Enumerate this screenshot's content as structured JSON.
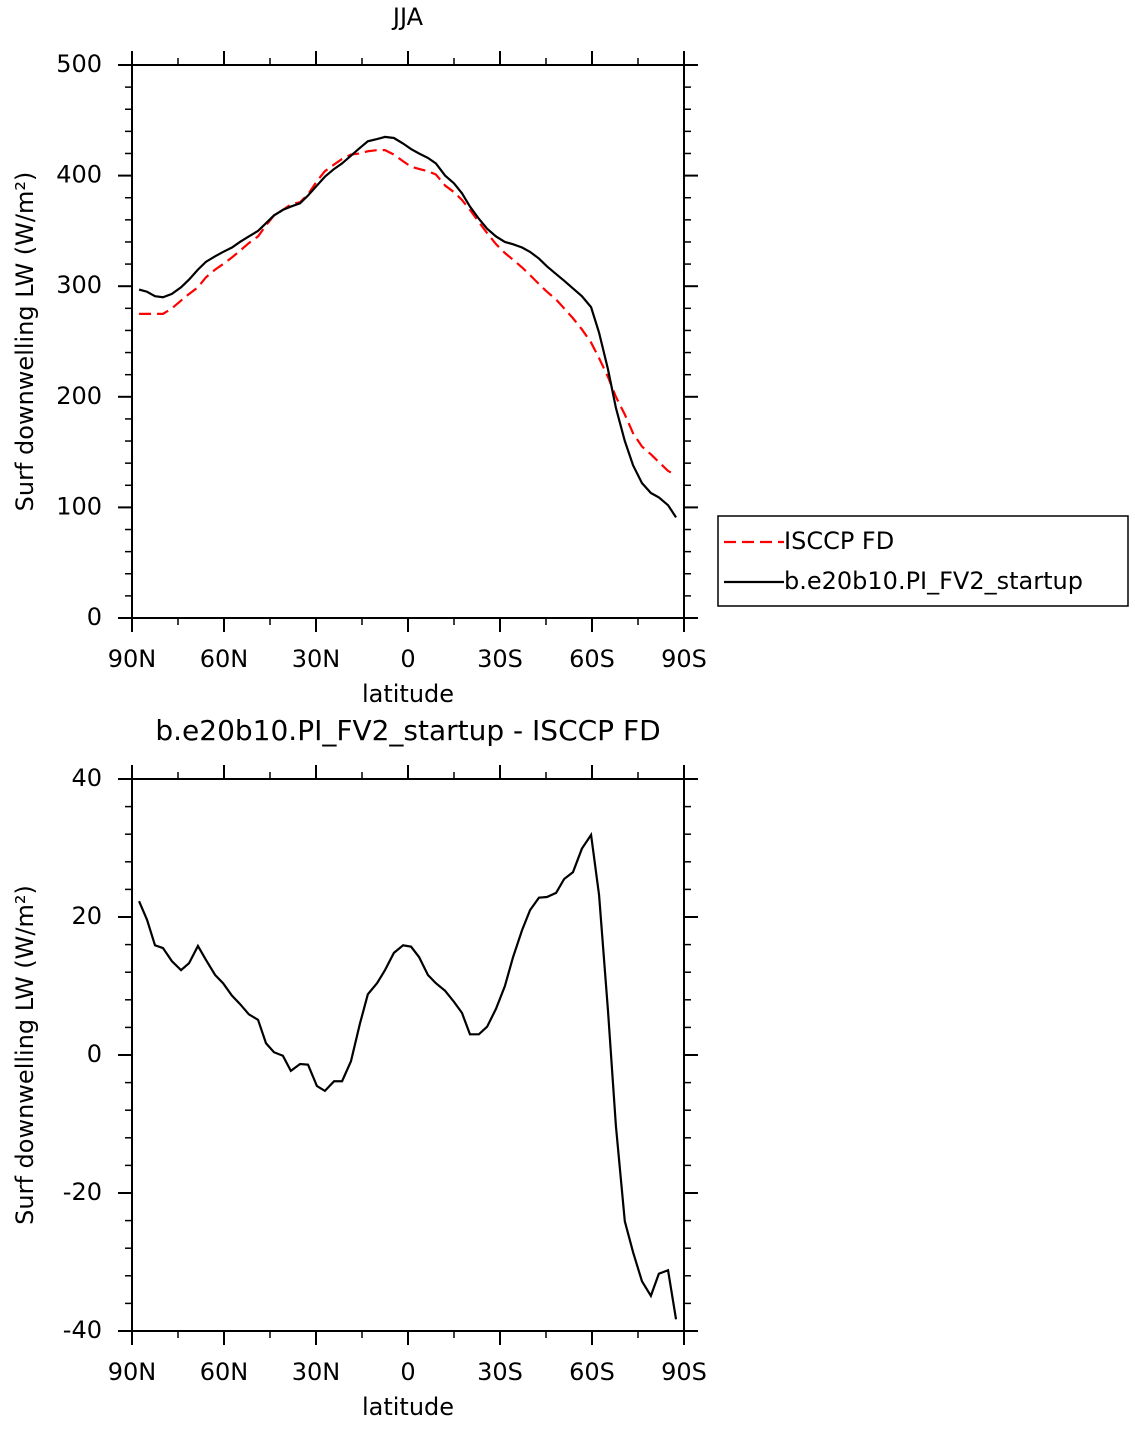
{
  "chart_data": [
    {
      "type": "line",
      "title": "JJA",
      "xlabel": "latitude",
      "ylabel": "Surf downwelling LW (W/m²)",
      "x": [
        87.7,
        85.1,
        82.5,
        79.9,
        77,
        74,
        71.4,
        68.5,
        65.9,
        62.9,
        60.3,
        57.4,
        54.8,
        51.9,
        48.9,
        46.3,
        43.7,
        40.8,
        38.2,
        35.2,
        32.6,
        29.7,
        27.1,
        24.1,
        21.5,
        18.6,
        15.7,
        13.1,
        10.1,
        7.5,
        4.6,
        1.6,
        -1,
        -3.6,
        -6.5,
        -9.1,
        -12.1,
        -15,
        -17.6,
        -20.2,
        -23.1,
        -25.8,
        -28.7,
        -31.6,
        -34.2,
        -37.2,
        -39.8,
        -42.7,
        -45.3,
        -48.3,
        -50.9,
        -53.8,
        -56.7,
        -59.7,
        -62.3,
        -65.2,
        -67.8,
        -70.7,
        -73.4,
        -76.3,
        -79.2,
        -81.8,
        -84.8,
        -87.4
      ],
      "series": [
        {
          "name": "ISCCP FD",
          "color": "#ff0000",
          "dash": true,
          "values": [
            275,
            275,
            275,
            275,
            280,
            287,
            293,
            299,
            308,
            315,
            320,
            326,
            332,
            339,
            345,
            355,
            364,
            369,
            374,
            376,
            383,
            395,
            404,
            410,
            415,
            419,
            420,
            422,
            423,
            423,
            419,
            413,
            408,
            406,
            404,
            401,
            391,
            385,
            378,
            369,
            358,
            348,
            338,
            330,
            324,
            317,
            310,
            302,
            295,
            288,
            280,
            271,
            261,
            249,
            235,
            218,
            200,
            184,
            167,
            155,
            148,
            141,
            133,
            129
          ]
        },
        {
          "name": "b.e20b10.PI_FV2_startup",
          "color": "#000000",
          "dash": false,
          "values": [
            297,
            295,
            291,
            290,
            293,
            299,
            306,
            315,
            322,
            327,
            331,
            335,
            340,
            345,
            350,
            357,
            364,
            369,
            372,
            375,
            382,
            391,
            399,
            406,
            411,
            418,
            425,
            431,
            433,
            435,
            434,
            429,
            424,
            420,
            416,
            411,
            400,
            393,
            384,
            372,
            361,
            352,
            345,
            340,
            338,
            335,
            331,
            325,
            318,
            311,
            305,
            298,
            291,
            281,
            258,
            225,
            190,
            160,
            138,
            122,
            113,
            109,
            102,
            91
          ]
        }
      ],
      "xlim": [
        90,
        -90
      ],
      "xticks": [
        {
          "value": 90,
          "label": "90N"
        },
        {
          "value": 60,
          "label": "60N"
        },
        {
          "value": 30,
          "label": "30N"
        },
        0,
        {
          "value": -30,
          "label": "30S"
        },
        {
          "value": -60,
          "label": "60S"
        },
        {
          "value": -90,
          "label": "90S"
        }
      ],
      "ylim": [
        0,
        500
      ],
      "yticks": [
        0,
        100,
        200,
        300,
        400,
        500
      ],
      "legend": "right"
    },
    {
      "type": "line",
      "title": "b.e20b10.PI_FV2_startup - ISCCP FD",
      "xlabel": "latitude",
      "ylabel": "Surf downwelling LW (W/m²)",
      "x": [
        87.7,
        85.1,
        82.5,
        79.9,
        77,
        74,
        71.4,
        68.5,
        65.9,
        62.9,
        60.3,
        57.4,
        54.8,
        51.9,
        48.9,
        46.3,
        43.7,
        40.8,
        38.2,
        35.2,
        32.6,
        29.7,
        27.1,
        24.1,
        21.5,
        18.6,
        15.7,
        13.1,
        10.1,
        7.5,
        4.6,
        1.6,
        -1,
        -3.6,
        -6.5,
        -9.1,
        -12.1,
        -15,
        -17.6,
        -20.2,
        -23.1,
        -25.8,
        -28.7,
        -31.6,
        -34.2,
        -37.2,
        -39.8,
        -42.7,
        -45.3,
        -48.3,
        -50.9,
        -53.8,
        -56.7,
        -59.7,
        -62.3,
        -65.2,
        -67.8,
        -70.7,
        -73.4,
        -76.3,
        -79.2,
        -81.8,
        -84.8,
        -87.4
      ],
      "series": [
        {
          "color": "#000000",
          "values": [
            22.3,
            19.6,
            15.9,
            15.5,
            13.6,
            12.3,
            13.3,
            15.8,
            13.8,
            11.6,
            10.4,
            8.6,
            7.4,
            5.9,
            5.1,
            1.7,
            0.4,
            -0.1,
            -2.3,
            -1.3,
            -1.4,
            -4.5,
            -5.2,
            -3.8,
            -3.8,
            -0.9,
            4.5,
            8.8,
            10.4,
            12.3,
            14.8,
            15.9,
            15.7,
            14.2,
            11.6,
            10.4,
            9.3,
            7.7,
            6.1,
            3.0,
            3.0,
            4.1,
            6.7,
            10.0,
            14.1,
            18.1,
            21.0,
            22.8,
            22.9,
            23.5,
            25.5,
            26.5,
            29.9,
            31.9,
            23.2,
            6.5,
            -10.3,
            -24.1,
            -28.6,
            -32.8,
            -34.9,
            -31.7,
            -31.2,
            -38.3
          ]
        }
      ],
      "xlim": [
        90,
        -90
      ],
      "xticks": [
        {
          "value": 90,
          "label": "90N"
        },
        {
          "value": 60,
          "label": "60N"
        },
        {
          "value": 30,
          "label": "30N"
        },
        0,
        {
          "value": -30,
          "label": "30S"
        },
        {
          "value": -60,
          "label": "60S"
        },
        {
          "value": -90,
          "label": "90S"
        }
      ],
      "ylim": [
        -40,
        40
      ],
      "yticks": [
        -40,
        -20,
        0,
        20,
        40
      ]
    }
  ]
}
